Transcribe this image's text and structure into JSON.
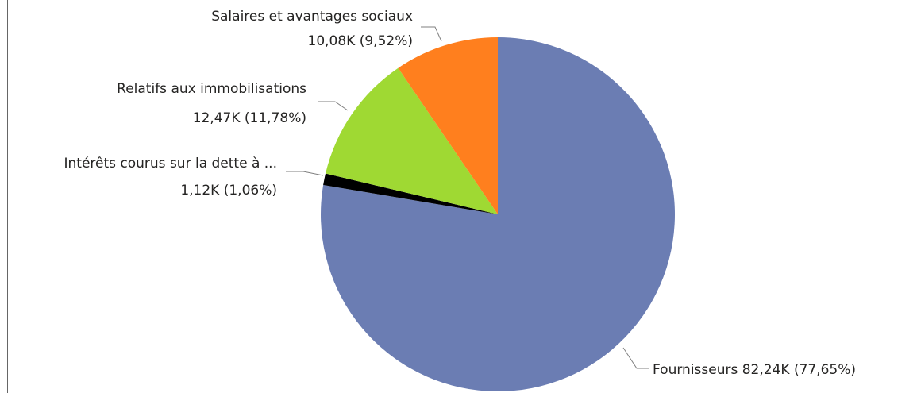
{
  "chart_data": {
    "type": "pie",
    "start_angle_deg": 0,
    "direction": "clockwise",
    "slices": [
      {
        "name": "Fournisseurs",
        "value": 82.24,
        "label_line1": "Fournisseurs 82,24K (77,65%)",
        "label_line2": "",
        "color": "#6b7db3"
      },
      {
        "name": "Intérêts courus sur la dette à ...",
        "value": 1.12,
        "label_line1": "Intérêts courus sur la dette à ...",
        "label_line2": "1,12K (1,06%)",
        "color": "#000000"
      },
      {
        "name": "Relatifs aux immobilisations",
        "value": 12.47,
        "label_line1": "Relatifs aux immobilisations",
        "label_line2": "12,47K (11,78%)",
        "color": "#9fd933"
      },
      {
        "name": "Salaires et avantages sociaux",
        "value": 10.08,
        "label_line1": "Salaires et avantages sociaux",
        "label_line2": "10,08K (9,52%)",
        "color": "#ff7f1e"
      }
    ]
  }
}
